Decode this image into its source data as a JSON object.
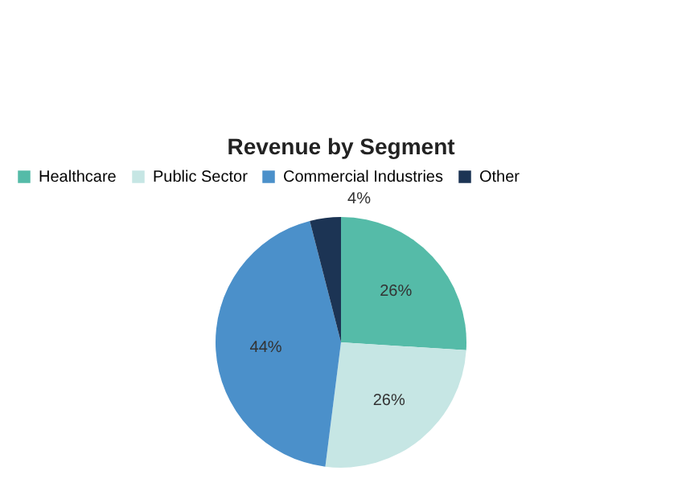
{
  "chart_data": {
    "type": "pie",
    "title": "Revenue by Segment",
    "categories": [
      "Healthcare",
      "Public Sector",
      "Commercial Industries",
      "Other"
    ],
    "values": [
      26,
      26,
      44,
      4
    ],
    "value_labels": [
      "26%",
      "26%",
      "44%",
      "4%"
    ],
    "colors": [
      "#55bba8",
      "#c6e6e4",
      "#4b90ca",
      "#1c3454"
    ],
    "legend": "top"
  }
}
